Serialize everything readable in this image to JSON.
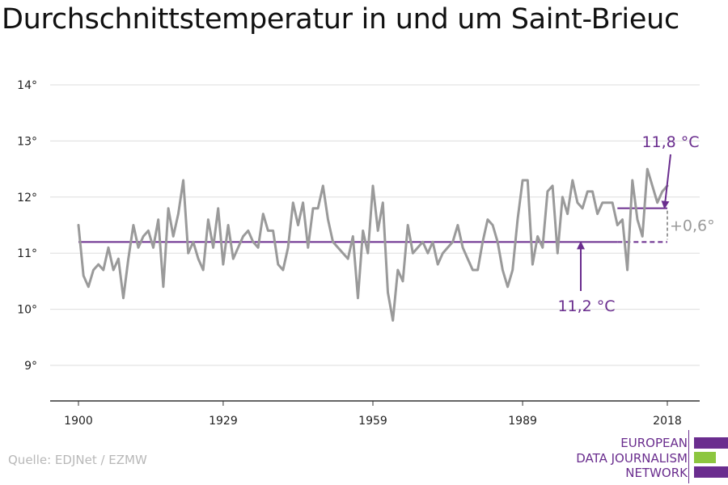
{
  "title": "Durchschnittstemperatur in und um Saint-Brieuc",
  "source": "Quelle: EDJNet / EZMW",
  "logo": {
    "lines": [
      "EUROPEAN",
      "DATA JOURNALISM",
      "NETWORK"
    ],
    "colors": {
      "purple": "#6a2d8e",
      "green": "#8cc63f"
    }
  },
  "chart_data": {
    "type": "line",
    "title": "Durchschnittstemperatur in und um Saint-Brieuc",
    "xlabel": "",
    "ylabel": "",
    "xlim": [
      1900,
      2018
    ],
    "ylim": [
      9,
      14
    ],
    "x_ticks": [
      1900,
      1929,
      1959,
      1989,
      2018
    ],
    "x_tick_labels": [
      "1900",
      "1929",
      "1959",
      "1989",
      "2018"
    ],
    "y_ticks": [
      9,
      10,
      11,
      12,
      13,
      14
    ],
    "y_tick_labels": [
      "9°",
      "10°",
      "11°",
      "12°",
      "13°",
      "14°"
    ],
    "grid": "horizontal",
    "colors": {
      "series": "#9a9a9a",
      "average": "#6a2d8e",
      "grid": "#dddddd",
      "axis": "#333333"
    },
    "series": [
      {
        "x_start": 1900,
        "values": [
          11.5,
          10.6,
          10.4,
          10.7,
          10.8,
          10.7,
          11.1,
          10.7,
          10.9,
          10.2,
          10.9,
          11.5,
          11.1,
          11.3,
          11.4,
          11.1,
          11.6,
          10.4,
          11.8,
          11.3,
          11.7,
          12.3,
          11.0,
          11.2,
          10.9,
          10.7,
          11.6,
          11.1,
          11.8,
          10.8,
          11.5,
          10.9,
          11.1,
          11.3,
          11.4,
          11.2,
          11.1,
          11.7,
          11.4,
          11.4,
          10.8,
          10.7,
          11.1,
          11.9,
          11.5,
          11.9,
          11.1,
          11.8,
          11.8,
          12.2,
          11.6,
          11.2,
          11.1,
          11.0,
          10.9,
          11.3,
          10.2,
          11.4,
          11.0,
          12.2,
          11.4,
          11.9,
          10.3,
          9.8,
          10.7,
          10.5,
          11.5,
          11.0,
          11.1,
          11.2,
          11.0,
          11.2,
          10.8,
          11.0,
          11.1,
          11.2,
          11.5,
          11.1,
          10.9,
          10.7,
          10.7,
          11.2,
          11.6,
          11.5,
          11.2,
          10.7,
          10.4,
          10.7,
          11.6,
          12.3,
          12.3,
          10.8,
          11.3,
          11.1,
          12.1,
          12.2,
          11.0,
          12.0,
          11.7,
          12.3,
          11.9,
          11.8,
          12.1,
          12.1,
          11.7,
          11.9,
          11.9,
          11.9,
          11.5,
          11.6,
          10.7,
          12.3,
          11.6,
          11.3,
          12.5,
          12.2,
          11.9,
          12.1,
          12.2
        ]
      }
    ],
    "averages": [
      {
        "label": "11,2 °C",
        "value": 11.2,
        "from": 1900,
        "to": 2008,
        "projected_to": 2018
      },
      {
        "label": "11,8 °C",
        "value": 11.8,
        "from": 2008,
        "to": 2018
      }
    ],
    "difference_label": "+0,6°"
  }
}
